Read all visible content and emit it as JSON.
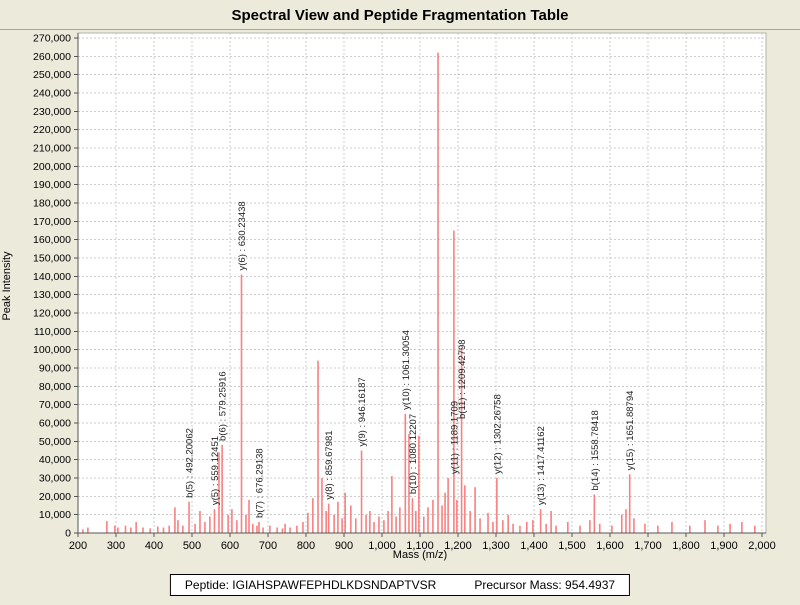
{
  "header": {
    "title": "Spectral View and Peptide Fragmentation Table"
  },
  "footer": {
    "peptide_label": "Peptide: IGIAHSPAWFEPHDLKDSNDAPTVSR",
    "precursor_label": "Precursor Mass: 954.4937"
  },
  "theme": {
    "background": "#ECEADB",
    "plot_background": "#FFFFFF",
    "grid_color": "#CCCCCC",
    "axis_color": "#555555",
    "border_color": "#B5B5AA",
    "peak_color": "#F88080",
    "annotation_color": "#222222",
    "text_color": "#000000"
  },
  "chart_data": {
    "type": "bar",
    "subtype": "mass-spectrum-stick-plot",
    "title": "Spectral View and Peptide Fragmentation Table",
    "xlabel": "Mass (m/z)",
    "ylabel": "Peak Intensity",
    "xlim": [
      200,
      2000
    ],
    "ylim": [
      0,
      270000
    ],
    "grid": "dashed",
    "legend": "none",
    "x_ticks": [
      200,
      300,
      400,
      500,
      600,
      700,
      800,
      900,
      1000,
      1100,
      1200,
      1300,
      1400,
      1500,
      1600,
      1700,
      1800,
      1900,
      2000
    ],
    "x_tick_labels": [
      "200",
      "300",
      "400",
      "500",
      "600",
      "700",
      "800",
      "900",
      "1,000",
      "1,100",
      "1,200",
      "1,300",
      "1,400",
      "1,500",
      "1,600",
      "1,700",
      "1,800",
      "1,900",
      "2,000"
    ],
    "y_ticks": [
      0,
      10000,
      20000,
      30000,
      40000,
      50000,
      60000,
      70000,
      80000,
      90000,
      100000,
      110000,
      120000,
      130000,
      140000,
      150000,
      160000,
      170000,
      180000,
      190000,
      200000,
      210000,
      220000,
      230000,
      240000,
      250000,
      260000,
      270000
    ],
    "y_tick_labels": [
      "0",
      "10,000",
      "20,000",
      "30,000",
      "40,000",
      "50,000",
      "60,000",
      "70,000",
      "80,000",
      "90,000",
      "100,000",
      "110,000",
      "120,000",
      "130,000",
      "140,000",
      "150,000",
      "160,000",
      "170,000",
      "180,000",
      "190,000",
      "200,000",
      "210,000",
      "220,000",
      "230,000",
      "240,000",
      "250,000",
      "260,000",
      "270,000"
    ],
    "annotated_peaks": [
      {
        "label": "b(5) : 492.20062",
        "mz": 492.20062,
        "intensity": 17000
      },
      {
        "label": "y(5) : 559.12451",
        "mz": 559.12451,
        "intensity": 13000
      },
      {
        "label": "b(6) : 579.25916",
        "mz": 579.25916,
        "intensity": 48000
      },
      {
        "label": "y(6) : 630.23438",
        "mz": 630.23438,
        "intensity": 141000
      },
      {
        "label": "b(7) : 676.29138",
        "mz": 676.29138,
        "intensity": 6000
      },
      {
        "label": "y(8) : 859.67981",
        "mz": 859.67981,
        "intensity": 16000
      },
      {
        "label": "y(9) : 946.16187",
        "mz": 946.16187,
        "intensity": 45000
      },
      {
        "label": "y(10) : 1061.30054",
        "mz": 1061.30054,
        "intensity": 65000
      },
      {
        "label": "b(10) : 1080.12207",
        "mz": 1080.12207,
        "intensity": 19000
      },
      {
        "label": "y(11) : 1189.1709",
        "mz": 1189.1709,
        "intensity": 165000,
        "label_at": 30000
      },
      {
        "label": "b(11) : 1209.42798",
        "mz": 1209.42798,
        "intensity": 101000,
        "label_at": 60000
      },
      {
        "label": "y(12) : 1302.26758",
        "mz": 1302.26758,
        "intensity": 30000
      },
      {
        "label": "y(13) : 1417.41162",
        "mz": 1417.41162,
        "intensity": 13000
      },
      {
        "label": "b(14) : 1558.78418",
        "mz": 1558.78418,
        "intensity": 21000
      },
      {
        "label": "y(15) : 1651.88794",
        "mz": 1651.88794,
        "intensity": 32000
      }
    ],
    "unlabeled_peaks": [
      {
        "mz": 213,
        "intensity": 2000
      },
      {
        "mz": 226,
        "intensity": 3000
      },
      {
        "mz": 276,
        "intensity": 6500
      },
      {
        "mz": 297,
        "intensity": 4000
      },
      {
        "mz": 305,
        "intensity": 3000
      },
      {
        "mz": 325,
        "intensity": 4000
      },
      {
        "mz": 339,
        "intensity": 3000
      },
      {
        "mz": 353,
        "intensity": 6000
      },
      {
        "mz": 371,
        "intensity": 3000
      },
      {
        "mz": 390,
        "intensity": 2500
      },
      {
        "mz": 410,
        "intensity": 3500
      },
      {
        "mz": 425,
        "intensity": 3000
      },
      {
        "mz": 440,
        "intensity": 4000
      },
      {
        "mz": 455,
        "intensity": 14000
      },
      {
        "mz": 463,
        "intensity": 7000
      },
      {
        "mz": 476,
        "intensity": 4000
      },
      {
        "mz": 508,
        "intensity": 5000
      },
      {
        "mz": 521,
        "intensity": 12000
      },
      {
        "mz": 534,
        "intensity": 6000
      },
      {
        "mz": 547,
        "intensity": 9000
      },
      {
        "mz": 571,
        "intensity": 44000
      },
      {
        "mz": 595,
        "intensity": 10000
      },
      {
        "mz": 605,
        "intensity": 13000
      },
      {
        "mz": 618,
        "intensity": 7000
      },
      {
        "mz": 642,
        "intensity": 10000
      },
      {
        "mz": 650,
        "intensity": 18000
      },
      {
        "mz": 660,
        "intensity": 5000
      },
      {
        "mz": 671,
        "intensity": 4000
      },
      {
        "mz": 687,
        "intensity": 3000
      },
      {
        "mz": 705,
        "intensity": 4000
      },
      {
        "mz": 724,
        "intensity": 3000
      },
      {
        "mz": 738,
        "intensity": 2500
      },
      {
        "mz": 745,
        "intensity": 5000
      },
      {
        "mz": 758,
        "intensity": 3000
      },
      {
        "mz": 776,
        "intensity": 4000
      },
      {
        "mz": 792,
        "intensity": 6000
      },
      {
        "mz": 805,
        "intensity": 11000
      },
      {
        "mz": 818,
        "intensity": 19000
      },
      {
        "mz": 831.6,
        "intensity": 94000
      },
      {
        "mz": 842,
        "intensity": 30000
      },
      {
        "mz": 853,
        "intensity": 12000
      },
      {
        "mz": 874,
        "intensity": 10000
      },
      {
        "mz": 884,
        "intensity": 17000
      },
      {
        "mz": 895,
        "intensity": 8000
      },
      {
        "mz": 903,
        "intensity": 22000
      },
      {
        "mz": 918,
        "intensity": 15000
      },
      {
        "mz": 931,
        "intensity": 8000
      },
      {
        "mz": 958,
        "intensity": 10000
      },
      {
        "mz": 968,
        "intensity": 12000
      },
      {
        "mz": 979,
        "intensity": 6000
      },
      {
        "mz": 992,
        "intensity": 9000
      },
      {
        "mz": 1005,
        "intensity": 7000
      },
      {
        "mz": 1016,
        "intensity": 12000
      },
      {
        "mz": 1026,
        "intensity": 31000
      },
      {
        "mz": 1037,
        "intensity": 9000
      },
      {
        "mz": 1047,
        "intensity": 14000
      },
      {
        "mz": 1071,
        "intensity": 54000
      },
      {
        "mz": 1089,
        "intensity": 12000
      },
      {
        "mz": 1097,
        "intensity": 53000
      },
      {
        "mz": 1110,
        "intensity": 9000
      },
      {
        "mz": 1121,
        "intensity": 14000
      },
      {
        "mz": 1134,
        "intensity": 18000
      },
      {
        "mz": 1147.4,
        "intensity": 262000
      },
      {
        "mz": 1158,
        "intensity": 15000
      },
      {
        "mz": 1166,
        "intensity": 22000
      },
      {
        "mz": 1174,
        "intensity": 30000
      },
      {
        "mz": 1197,
        "intensity": 18000
      },
      {
        "mz": 1218,
        "intensity": 26000
      },
      {
        "mz": 1232,
        "intensity": 12000
      },
      {
        "mz": 1245,
        "intensity": 25000
      },
      {
        "mz": 1258,
        "intensity": 8000
      },
      {
        "mz": 1279,
        "intensity": 11000
      },
      {
        "mz": 1292,
        "intensity": 6000
      },
      {
        "mz": 1318,
        "intensity": 7000
      },
      {
        "mz": 1332,
        "intensity": 10000
      },
      {
        "mz": 1345,
        "intensity": 5000
      },
      {
        "mz": 1363,
        "intensity": 4000
      },
      {
        "mz": 1381,
        "intensity": 6000
      },
      {
        "mz": 1397,
        "intensity": 7000
      },
      {
        "mz": 1432,
        "intensity": 5000
      },
      {
        "mz": 1445,
        "intensity": 12000
      },
      {
        "mz": 1458,
        "intensity": 4000
      },
      {
        "mz": 1489,
        "intensity": 6000
      },
      {
        "mz": 1521,
        "intensity": 4000
      },
      {
        "mz": 1547,
        "intensity": 7000
      },
      {
        "mz": 1573,
        "intensity": 5000
      },
      {
        "mz": 1605,
        "intensity": 4000
      },
      {
        "mz": 1631,
        "intensity": 10000
      },
      {
        "mz": 1642,
        "intensity": 13000
      },
      {
        "mz": 1663,
        "intensity": 8000
      },
      {
        "mz": 1692,
        "intensity": 5000
      },
      {
        "mz": 1726,
        "intensity": 4000
      },
      {
        "mz": 1763,
        "intensity": 6000
      },
      {
        "mz": 1810,
        "intensity": 4000
      },
      {
        "mz": 1850,
        "intensity": 7000
      },
      {
        "mz": 1884,
        "intensity": 4000
      },
      {
        "mz": 1916,
        "intensity": 5000
      },
      {
        "mz": 1947,
        "intensity": 6000
      },
      {
        "mz": 1981,
        "intensity": 4000
      }
    ]
  }
}
